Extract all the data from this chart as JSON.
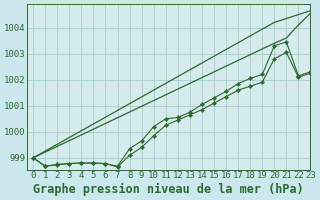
{
  "title": "Graphe pression niveau de la mer (hPa)",
  "bg_color": "#cce8ee",
  "plot_bg_color": "#d6ecec",
  "grid_color": "#a8cece",
  "line_color": "#2d6a2d",
  "xlim": [
    -0.5,
    23
  ],
  "ylim": [
    998.55,
    1004.9
  ],
  "yticks": [
    999,
    1000,
    1001,
    1002,
    1003,
    1004
  ],
  "xticks": [
    0,
    1,
    2,
    3,
    4,
    5,
    6,
    7,
    8,
    9,
    10,
    11,
    12,
    13,
    14,
    15,
    16,
    17,
    18,
    19,
    20,
    21,
    22,
    23
  ],
  "series_plain": [
    [
      999.0,
      999.26,
      999.52,
      999.78,
      1000.04,
      1000.3,
      1000.56,
      1000.82,
      1001.08,
      1001.34,
      1001.6,
      1001.86,
      1002.12,
      1002.38,
      1002.64,
      1002.9,
      1003.16,
      1003.42,
      1003.68,
      1003.94,
      1004.2,
      1004.35,
      1004.5,
      1004.65
    ],
    [
      999.0,
      999.22,
      999.44,
      999.66,
      999.88,
      1000.1,
      1000.32,
      1000.54,
      1000.76,
      1000.98,
      1001.2,
      1001.42,
      1001.64,
      1001.86,
      1002.08,
      1002.3,
      1002.52,
      1002.74,
      1002.96,
      1003.18,
      1003.4,
      1003.6,
      1004.1,
      1004.55
    ]
  ],
  "series_marker": [
    [
      999.0,
      998.68,
      998.75,
      998.78,
      998.8,
      998.8,
      998.78,
      998.68,
      999.35,
      999.65,
      1000.2,
      1000.5,
      1000.55,
      1000.75,
      1001.05,
      1001.3,
      1001.55,
      1001.85,
      1002.05,
      1002.2,
      1003.3,
      1003.45,
      1002.15,
      1002.3
    ],
    [
      999.0,
      998.68,
      998.73,
      998.78,
      998.8,
      998.8,
      998.78,
      998.65,
      999.1,
      999.4,
      999.85,
      1000.25,
      1000.45,
      1000.65,
      1000.85,
      1001.1,
      1001.35,
      1001.6,
      1001.75,
      1001.9,
      1002.8,
      1003.05,
      1002.1,
      1002.25
    ]
  ],
  "tick_fontsize": 6.5,
  "xlabel_fontsize": 8.5
}
